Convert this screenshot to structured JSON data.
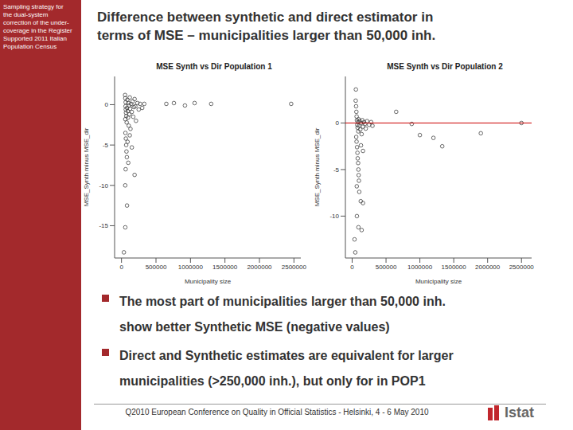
{
  "slide": {
    "sidebar_lines": [
      "Sampling strategy for",
      "the dual-system",
      "correction of the under-",
      "coverage in the Register",
      "Supported 2011 Italian",
      "Population Census"
    ],
    "title_lines": [
      "Difference between synthetic and direct estimator in",
      "terms of MSE – municipalities larger than 50,000 inh."
    ],
    "bullets": [
      [
        "The most part of municipalities larger than 50,000 inh.",
        "show better Synthetic MSE (negative values)"
      ],
      [
        "Direct and Synthetic estimates are equivalent for larger",
        "municipalities (>250,000 inh.), but only for in POP1"
      ]
    ],
    "footer": "Q2010 European Conference on Quality in Official Statistics - Helsinki, 4 - 6 May 2010",
    "logo": "Istat"
  },
  "chart_data": [
    {
      "type": "scatter",
      "title": "MSE Synth vs Dir Population 1",
      "x_label": "Municipality size",
      "y_label": "MSE_Synth minus MSE_dir",
      "xlim": [
        -100000,
        2600000
      ],
      "ylim": [
        -19,
        3.5
      ],
      "xticks": [
        0,
        500000,
        1000000,
        1500000,
        2000000,
        2500000
      ],
      "yticks": [
        -15,
        -10,
        -5,
        0
      ],
      "grid": false,
      "series": [
        {
          "color": "#444444",
          "marker": "circle",
          "x": [
            52000,
            55000,
            60000,
            58000,
            62000,
            65000,
            70000,
            55000,
            75000,
            80000,
            85000,
            90000,
            95000,
            100000,
            105000,
            110000,
            115000,
            120000,
            125000,
            130000,
            140000,
            150000,
            160000,
            170000,
            180000,
            190000,
            200000,
            210000,
            230000,
            250000,
            270000,
            300000,
            330000,
            57000,
            63000,
            68000,
            72000,
            78000,
            88000,
            98000,
            150000,
            190000,
            60000,
            54000,
            80000,
            55000,
            35000,
            120000,
            650000,
            760000,
            920000,
            1060000,
            1300000,
            2460000
          ],
          "values": [
            1.2,
            0.8,
            0.3,
            -0.2,
            -0.6,
            -1.0,
            -1.4,
            -1.8,
            -2.2,
            -0.4,
            0.6,
            -0.8,
            -1.6,
            0.2,
            -2.6,
            -0.1,
            -1.2,
            0.9,
            -0.5,
            -3.0,
            0.1,
            -0.9,
            0.4,
            -1.5,
            -0.3,
            0.7,
            -0.2,
            -2.0,
            0.2,
            -0.6,
            0.1,
            -0.4,
            0.1,
            -3.5,
            -4.2,
            -5.0,
            -5.8,
            -6.5,
            -4.6,
            -7.2,
            -5.3,
            -8.7,
            -8.0,
            -10.0,
            -12.5,
            -15.2,
            -18.3,
            -3.8,
            0.1,
            0.2,
            -0.1,
            0.2,
            0.1,
            0.1
          ]
        }
      ]
    },
    {
      "type": "scatter",
      "title": "MSE Synth vs Dir Population 2",
      "x_label": "Municipality size",
      "y_label": "MSE_Synth minus MSE_dir",
      "xlim": [
        -100000,
        2650000
      ],
      "ylim": [
        -14.5,
        5
      ],
      "xticks": [
        0,
        500000,
        1000000,
        1500000,
        2000000,
        2500000
      ],
      "yticks": [
        -10,
        -5,
        0
      ],
      "grid": false,
      "series": [
        {
          "color": "#444444",
          "marker": "circle",
          "x": [
            52000,
            58000,
            62000,
            66000,
            70000,
            75000,
            80000,
            85000,
            90000,
            95000,
            100000,
            110000,
            120000,
            130000,
            140000,
            150000,
            160000,
            175000,
            190000,
            200000,
            220000,
            250000,
            280000,
            300000,
            60000,
            65000,
            72000,
            78000,
            82000,
            88000,
            92000,
            96000,
            100000,
            68000,
            105000,
            55000,
            130000,
            160000,
            127000,
            160000,
            70000,
            93000,
            140000,
            35000,
            46000,
            650000,
            880000,
            1000000,
            1200000,
            1330000,
            1900000,
            2500000
          ],
          "values": [
            2.4,
            1.8,
            1.2,
            0.7,
            0.3,
            -0.2,
            -0.5,
            0.1,
            -0.9,
            0.4,
            -0.3,
            0.2,
            -0.7,
            0.0,
            -1.2,
            0.3,
            -0.4,
            0.1,
            -0.1,
            -0.6,
            0.2,
            -0.2,
            0.1,
            -0.3,
            -1.5,
            -2.0,
            -2.6,
            -3.2,
            -3.8,
            -4.3,
            -5.0,
            -5.6,
            -6.2,
            -6.8,
            -7.4,
            3.6,
            -2.4,
            -3.0,
            -8.4,
            -8.6,
            -10.0,
            -11.2,
            -11.5,
            -12.5,
            -13.9,
            1.2,
            -0.1,
            -1.3,
            -1.6,
            -2.5,
            -1.1,
            0.0
          ]
        },
        {
          "type": "line",
          "color": "#cc0000",
          "x": [
            -100000,
            2650000
          ],
          "values": [
            0,
            0
          ]
        }
      ]
    }
  ]
}
